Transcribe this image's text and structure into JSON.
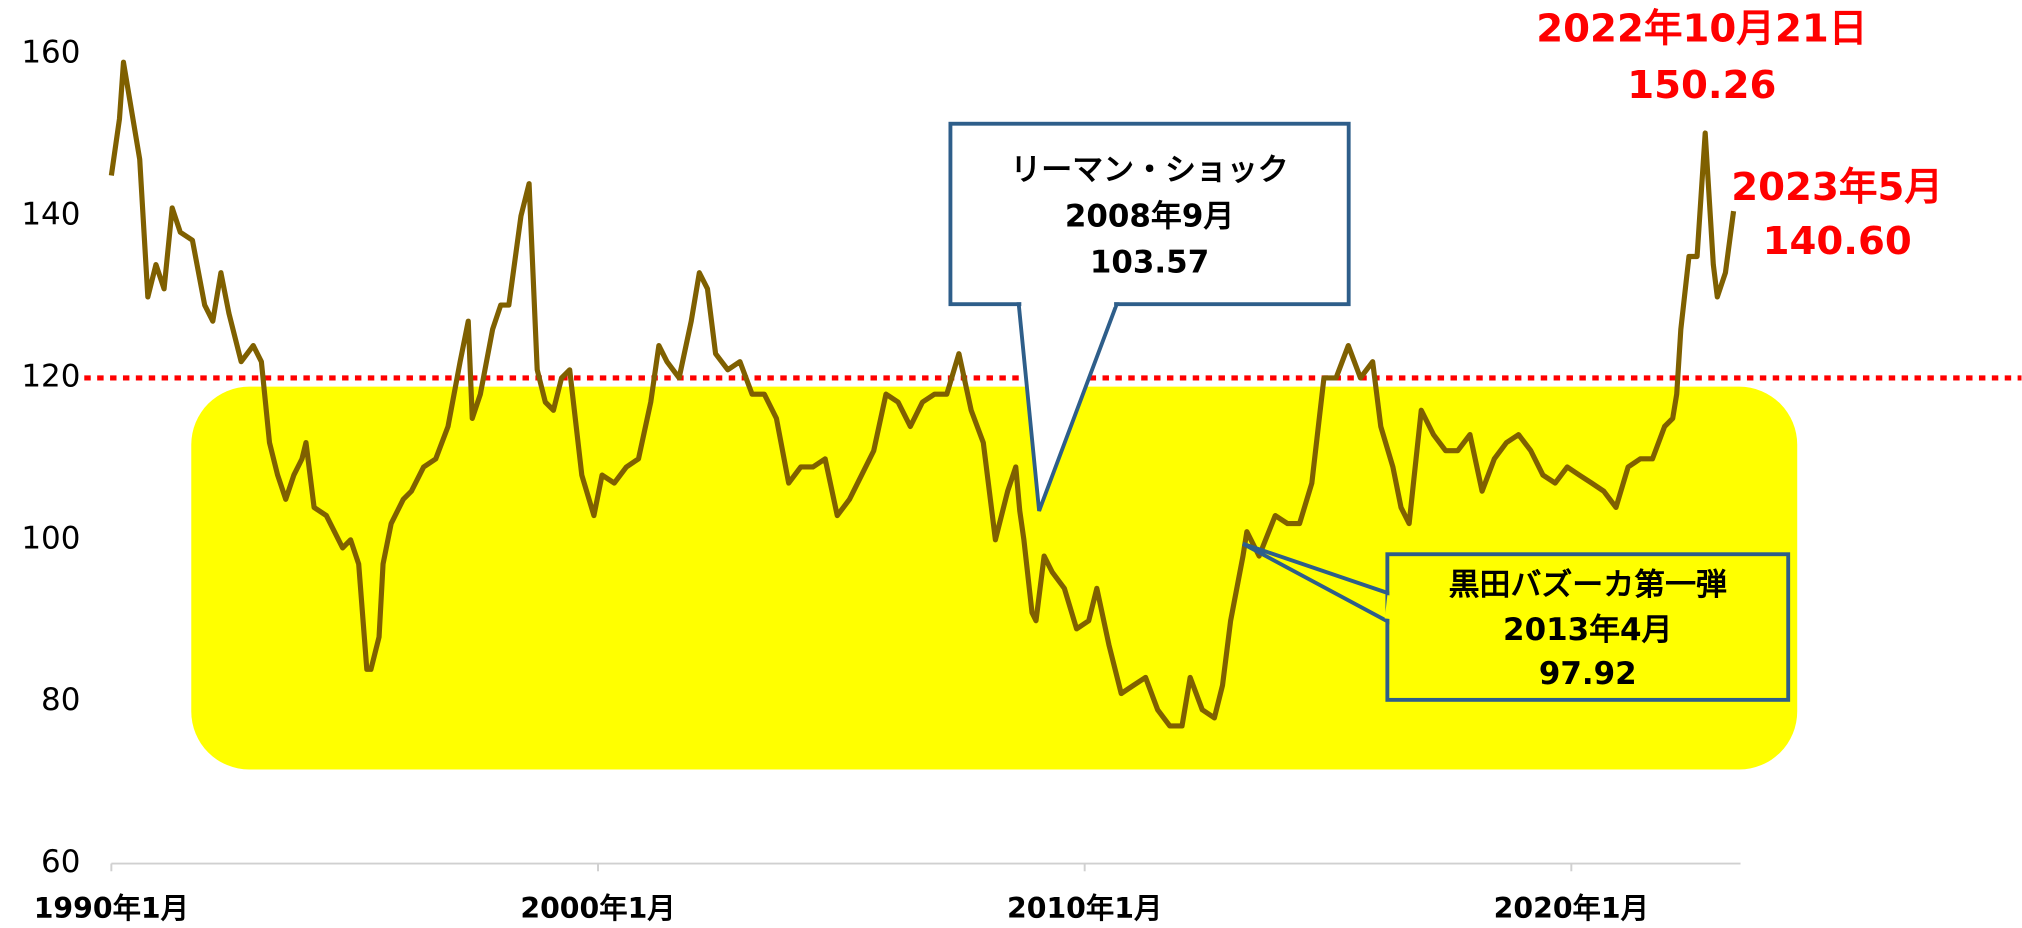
{
  "chart_data": {
    "type": "line",
    "x": [
      "1990-01",
      "1990-03",
      "1990-04",
      "1990-06",
      "1990-08",
      "1990-10",
      "1990-12",
      "1991-02",
      "1991-04",
      "1991-06",
      "1991-09",
      "1991-12",
      "1992-02",
      "1992-04",
      "1992-06",
      "1992-09",
      "1992-12",
      "1993-02",
      "1993-04",
      "1993-06",
      "1993-08",
      "1993-10",
      "1993-12",
      "1994-01",
      "1994-03",
      "1994-06",
      "1994-08",
      "1994-10",
      "1994-12",
      "1995-02",
      "1995-04",
      "1995-05",
      "1995-07",
      "1995-08",
      "1995-10",
      "1996-01",
      "1996-03",
      "1996-06",
      "1996-09",
      "1996-12",
      "1997-03",
      "1997-05",
      "1997-06",
      "1997-08",
      "1997-11",
      "1998-01",
      "1998-03",
      "1998-06",
      "1998-08",
      "1998-10",
      "1998-12",
      "1999-02",
      "1999-04",
      "1999-06",
      "1999-09",
      "1999-12",
      "2000-02",
      "2000-05",
      "2000-08",
      "2000-11",
      "2001-02",
      "2001-04",
      "2001-06",
      "2001-09",
      "2001-12",
      "2002-02",
      "2002-04",
      "2002-06",
      "2002-09",
      "2002-12",
      "2003-03",
      "2003-06",
      "2003-09",
      "2003-12",
      "2004-03",
      "2004-06",
      "2004-09",
      "2004-12",
      "2005-03",
      "2005-06",
      "2005-09",
      "2005-12",
      "2006-03",
      "2006-06",
      "2006-09",
      "2006-12",
      "2007-03",
      "2007-06",
      "2007-09",
      "2007-12",
      "2008-03",
      "2008-06",
      "2008-08",
      "2008-09",
      "2008-10",
      "2008-12",
      "2009-01",
      "2009-03",
      "2009-05",
      "2009-08",
      "2009-11",
      "2010-02",
      "2010-04",
      "2010-07",
      "2010-10",
      "2011-01",
      "2011-04",
      "2011-07",
      "2011-10",
      "2012-01",
      "2012-03",
      "2012-06",
      "2012-09",
      "2012-11",
      "2013-01",
      "2013-04",
      "2013-05",
      "2013-08",
      "2013-12",
      "2014-03",
      "2014-06",
      "2014-09",
      "2014-12",
      "2015-03",
      "2015-06",
      "2015-09",
      "2015-12",
      "2016-02",
      "2016-05",
      "2016-07",
      "2016-09",
      "2016-12",
      "2017-03",
      "2017-06",
      "2017-09",
      "2017-12",
      "2018-03",
      "2018-06",
      "2018-09",
      "2018-12",
      "2019-03",
      "2019-06",
      "2019-09",
      "2019-12",
      "2020-03",
      "2020-06",
      "2020-09",
      "2020-12",
      "2021-03",
      "2021-06",
      "2021-09",
      "2021-12",
      "2022-02",
      "2022-03",
      "2022-04",
      "2022-06",
      "2022-08",
      "2022-10",
      "2022-12",
      "2023-01",
      "2023-03",
      "2023-05"
    ],
    "series": [
      {
        "color": "#7f6000",
        "values": [
          145,
          152,
          159,
          153,
          147,
          130,
          134,
          131,
          141,
          138,
          137,
          129,
          127,
          133,
          128,
          122,
          124,
          122,
          112,
          108,
          105,
          108,
          110,
          112,
          104,
          103,
          101,
          99,
          100,
          97,
          84,
          84,
          88,
          97,
          102,
          105,
          106,
          109,
          110,
          114,
          122,
          127,
          115,
          118,
          126,
          129,
          129,
          140,
          144,
          121,
          117,
          116,
          120,
          121,
          108,
          103,
          108,
          107,
          109,
          110,
          117,
          124,
          122,
          120,
          127,
          133,
          131,
          123,
          121,
          122,
          118,
          118,
          115,
          107,
          109,
          109,
          110,
          103,
          105,
          108,
          111,
          118,
          117,
          114,
          117,
          118,
          118,
          123,
          116,
          112,
          100,
          106,
          109,
          103.57,
          100,
          91,
          90,
          98,
          96,
          94,
          89,
          90,
          94,
          87,
          81,
          82,
          83,
          79,
          77,
          77,
          83,
          79,
          78,
          82,
          90,
          97.92,
          101,
          98,
          103,
          102,
          102,
          107,
          120,
          120,
          124,
          120,
          122,
          114,
          109,
          104,
          102,
          116,
          113,
          111,
          111,
          113,
          106,
          110,
          112,
          113,
          111,
          108,
          107,
          109,
          108,
          107,
          106,
          104,
          109,
          110,
          110,
          114,
          115,
          118,
          126,
          135,
          135,
          150.26,
          134,
          130,
          133,
          140.6
        ]
      }
    ],
    "xlim": [
      "1990-01",
      "2029-04"
    ],
    "xticks": [
      {
        "value": "1990-01",
        "label": "1990年1月"
      },
      {
        "value": "2000-01",
        "label": "2000年1月"
      },
      {
        "value": "2010-01",
        "label": "2010年1月"
      },
      {
        "value": "2020-01",
        "label": "2020年1月"
      }
    ],
    "ylim": [
      60,
      160
    ],
    "yticks": [
      60,
      80,
      100,
      120,
      140,
      160
    ],
    "reference_line": {
      "value": 120,
      "color": "#ff0000"
    },
    "annotations": [
      {
        "x": "2008-09",
        "y": 103.57,
        "lines": [
          "リーマン・ショック",
          "2008年9月",
          "103.57"
        ],
        "color": "#000000"
      },
      {
        "x": "2013-04",
        "y": 97.92,
        "lines": [
          "黒田バズーカ第一弾",
          "2013年4月",
          "97.92"
        ],
        "color": "#000000"
      },
      {
        "x": "2022-10",
        "y": 150.26,
        "lines": [
          "2022年10月21日",
          "150.26"
        ],
        "color": "#ff0000"
      },
      {
        "x": "2023-05",
        "y": 140.6,
        "lines": [
          "2023年5月",
          "140.60"
        ],
        "color": "#ff0000"
      }
    ]
  }
}
